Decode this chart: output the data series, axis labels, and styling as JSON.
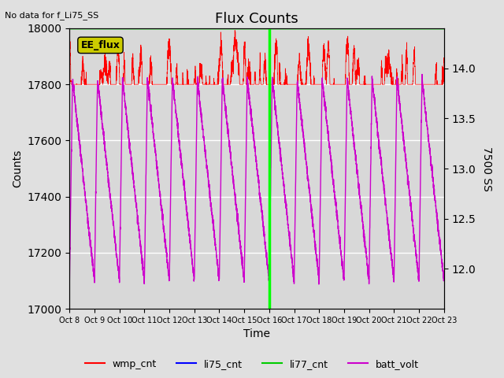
{
  "title": "Flux Counts",
  "top_left_text": "No data for f_Li75_SS",
  "annotation_text": "EE_flux",
  "xlabel": "Time",
  "ylabel_left": "Counts",
  "ylabel_right": "7500 SS",
  "ylim_left": [
    17000,
    18000
  ],
  "ylim_right": [
    11.6,
    14.4
  ],
  "x_tick_labels": [
    "Oct 8",
    "Oct 9",
    "Oct 10",
    "Oct 11",
    "Oct 12",
    "Oct 13",
    "Oct 14",
    "Oct 15",
    "Oct 16",
    "Oct 17",
    "Oct 18",
    "Oct 19",
    "Oct 20",
    "Oct 21",
    "Oct 22",
    "Oct 23"
  ],
  "background_color": "#e0e0e0",
  "plot_bg_color": "#d8d8d8",
  "wmp_cnt_color": "#ff0000",
  "li77_cnt_color": "#00ee00",
  "batt_volt_color": "#cc00cc",
  "li75_cnt_color": "#0000ff",
  "annotation_bg": "#cccc00",
  "vline_color": "#00ff00",
  "n_days": 15
}
